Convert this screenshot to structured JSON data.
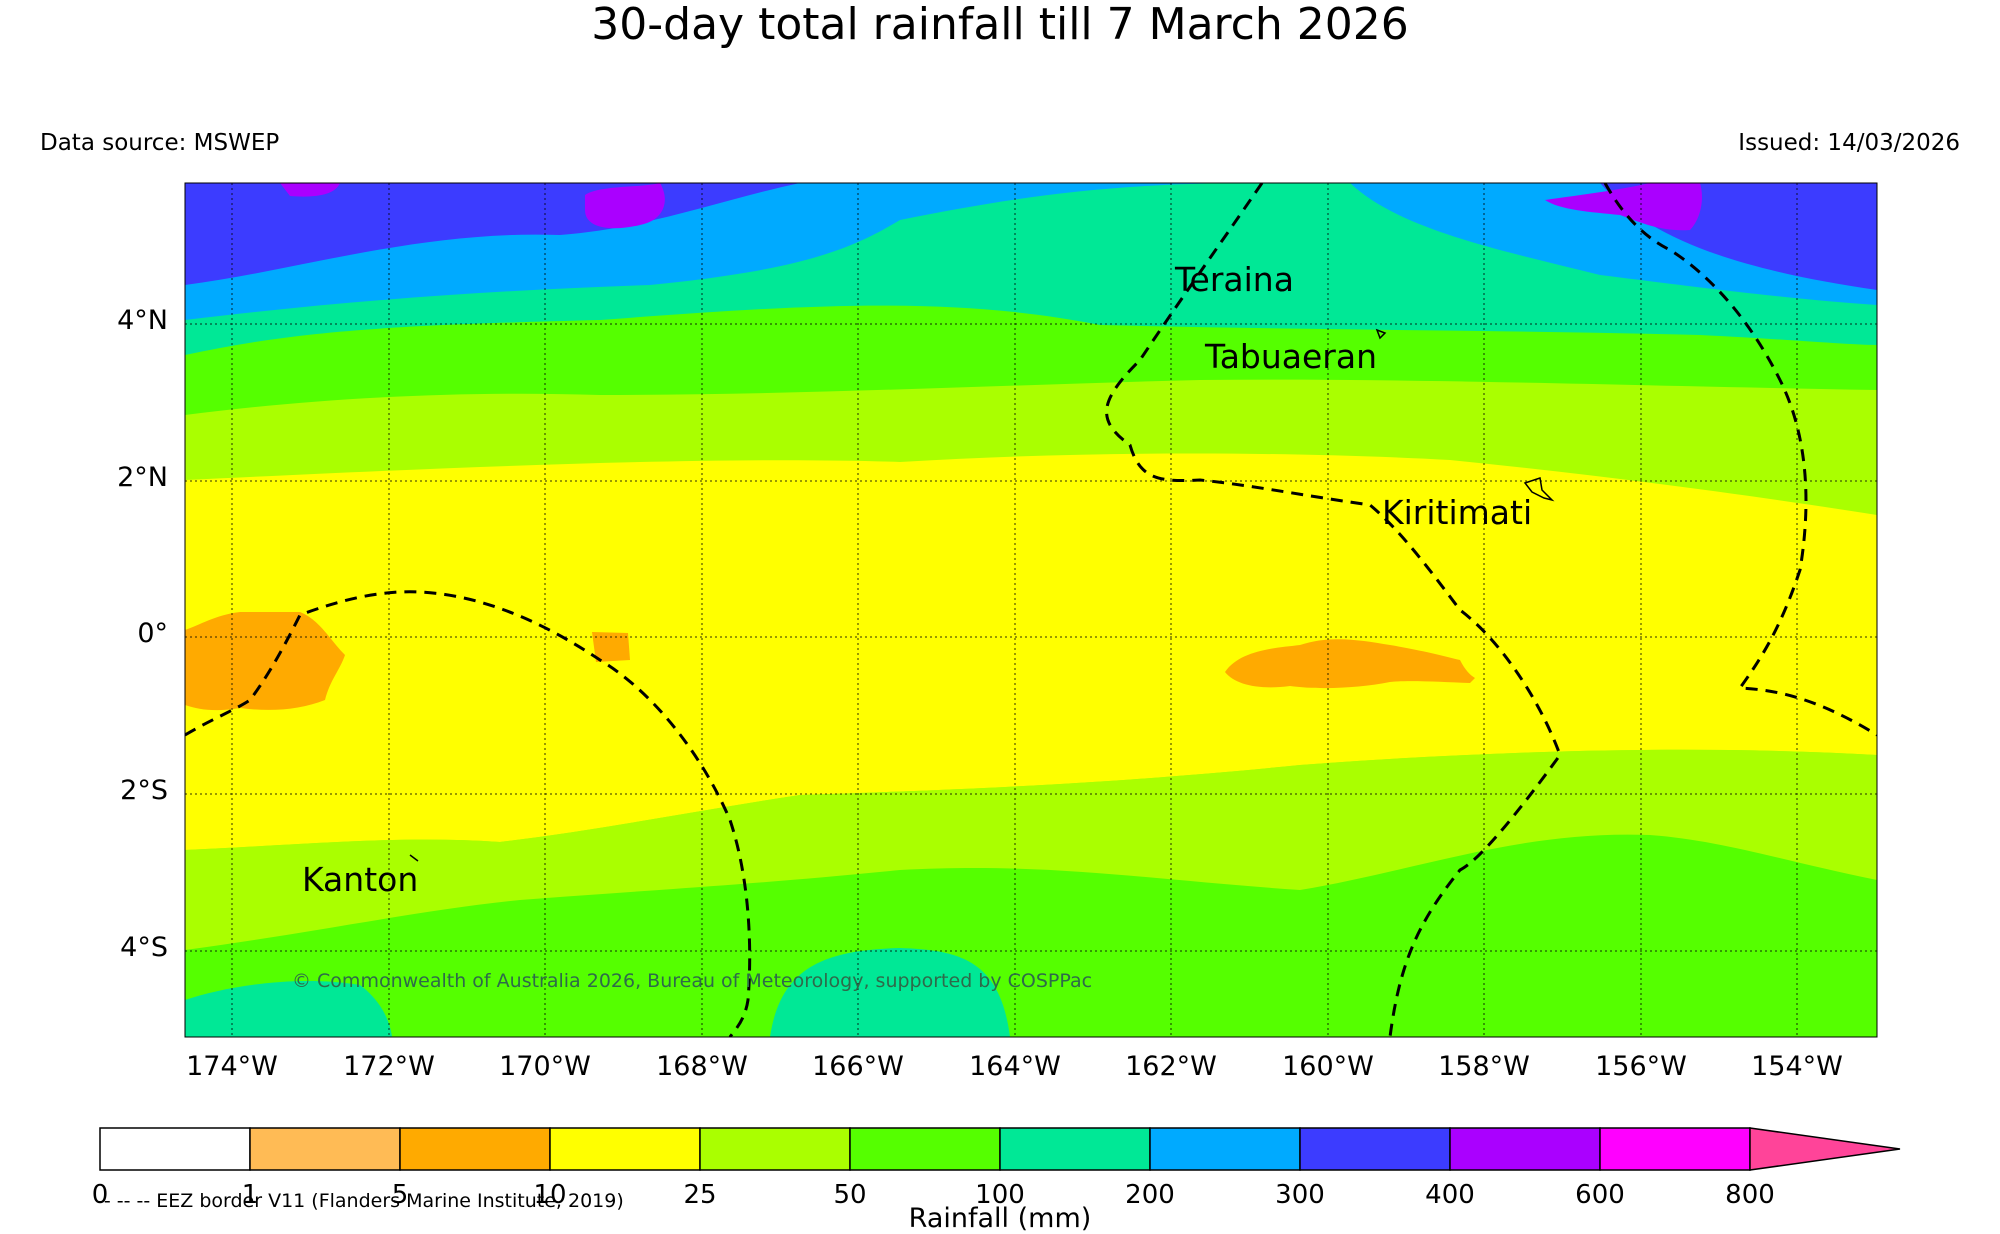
{
  "title": "30-day total rainfall till 7 March 2026",
  "data_source": "Data source: MSWEP",
  "issued": "Issued: 14/03/2026",
  "y_ticks": [
    "4°N",
    "2°N",
    "0°",
    "2°S",
    "4°S"
  ],
  "x_ticks": [
    "174°W",
    "172°W",
    "170°W",
    "168°W",
    "166°W",
    "164°W",
    "162°W",
    "160°W",
    "158°W",
    "156°W",
    "154°W"
  ],
  "places": {
    "teraina": "Teraina",
    "tabuaeran": "Tabuaeran",
    "kiritimati": "Kiritimati",
    "kanton": "Kanton"
  },
  "copyright": "© Commonwealth of Australia 2026, Bureau of Meteorology, supported by COSPPac",
  "colorbar": {
    "labels": [
      "0",
      "1",
      "5",
      "10",
      "25",
      "50",
      "100",
      "200",
      "300",
      "400",
      "600",
      "800"
    ],
    "colors": [
      "#ffffff",
      "#ffbb55",
      "#ffaa00",
      "#ffff00",
      "#aaff00",
      "#55ff00",
      "#00e896",
      "#00aaff",
      "#3c3cff",
      "#aa00ff",
      "#ff00ff",
      "#ff4499"
    ],
    "title": "Rainfall (mm)"
  },
  "legend_note": "-- -- -- EEZ border V11 (Flanders Marine Institute, 2019)"
}
